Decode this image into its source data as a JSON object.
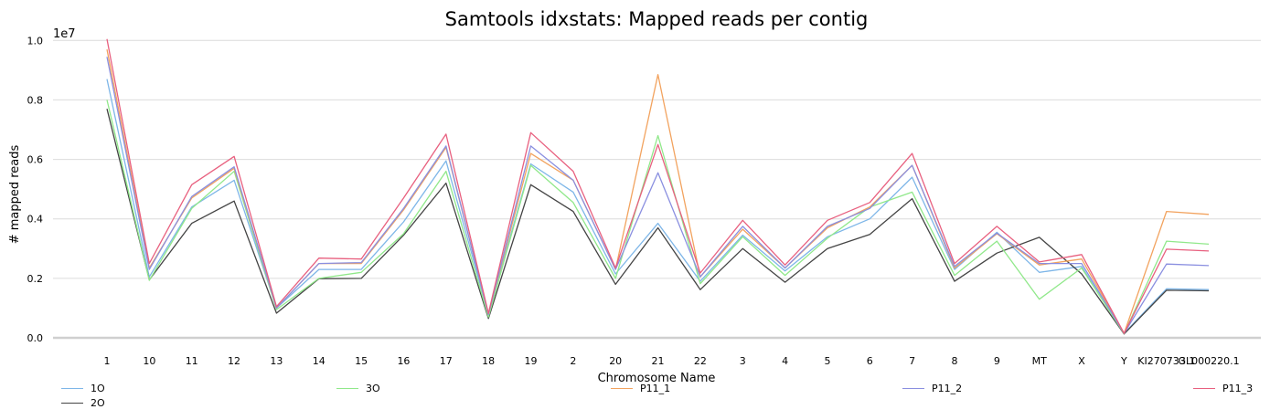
{
  "chart_data": {
    "type": "line",
    "title": "Samtools idxstats: Mapped reads per contig",
    "xlabel": "Chromosome Name",
    "ylabel": "# mapped reads",
    "y_scale_label": "1e7",
    "ylim": [
      0,
      10500000
    ],
    "yticks": [
      "0.0",
      "0.2",
      "0.4",
      "0.6",
      "0.8",
      "1.0"
    ],
    "ytick_values": [
      0,
      2000000,
      4000000,
      6000000,
      8000000,
      10000000
    ],
    "grid": "horizontal",
    "legend_position": "bottom",
    "categories": [
      "1",
      "10",
      "11",
      "12",
      "13",
      "14",
      "15",
      "16",
      "17",
      "18",
      "19",
      "2",
      "20",
      "21",
      "22",
      "3",
      "4",
      "5",
      "6",
      "7",
      "8",
      "9",
      "MT",
      "X",
      "Y",
      "KI270733.1",
      "GL000220.1"
    ],
    "series": [
      {
        "name": "1O",
        "color": "#7EB6E8",
        "values": [
          8700000,
          2050000,
          4400000,
          5300000,
          1000000,
          2300000,
          2300000,
          3900000,
          5950000,
          800000,
          5850000,
          4900000,
          2150000,
          3850000,
          1900000,
          3450000,
          2250000,
          3400000,
          4000000,
          5400000,
          2300000,
          3550000,
          2200000,
          2400000,
          150000,
          1650000,
          1620000
        ]
      },
      {
        "name": "2O",
        "color": "#444444",
        "values": [
          7700000,
          1950000,
          3850000,
          4600000,
          830000,
          1990000,
          2000000,
          3450000,
          5200000,
          650000,
          5150000,
          4250000,
          1800000,
          3700000,
          1620000,
          3000000,
          1870000,
          3000000,
          3480000,
          4680000,
          1900000,
          2850000,
          3380000,
          2150000,
          130000,
          1600000,
          1580000
        ]
      },
      {
        "name": "3O",
        "color": "#90E88A",
        "values": [
          8000000,
          1930000,
          4350000,
          5600000,
          950000,
          2000000,
          2200000,
          3500000,
          5600000,
          700000,
          5800000,
          4550000,
          2000000,
          6800000,
          1820000,
          3400000,
          2100000,
          3350000,
          4400000,
          4900000,
          2100000,
          3250000,
          1300000,
          2350000,
          140000,
          3250000,
          3150000
        ]
      },
      {
        "name": "P11_1",
        "color": "#F2A35F",
        "values": [
          9700000,
          2350000,
          4700000,
          5700000,
          1000000,
          2500000,
          2500000,
          4300000,
          6400000,
          800000,
          6200000,
          5300000,
          2300000,
          8850000,
          2050000,
          3650000,
          2350000,
          3700000,
          4400000,
          5800000,
          2350000,
          3500000,
          2450000,
          2650000,
          150000,
          4250000,
          4150000
        ]
      },
      {
        "name": "P11_2",
        "color": "#8A8FE0",
        "values": [
          9450000,
          2300000,
          4750000,
          5750000,
          1000000,
          2500000,
          2530000,
          4350000,
          6450000,
          780000,
          6450000,
          5300000,
          2300000,
          5550000,
          2050000,
          3750000,
          2350000,
          3750000,
          4350000,
          5800000,
          2400000,
          3520000,
          2500000,
          2500000,
          150000,
          2480000,
          2430000
        ]
      },
      {
        "name": "P11_3",
        "color": "#E8607F",
        "values": [
          10050000,
          2500000,
          5150000,
          6100000,
          1050000,
          2680000,
          2650000,
          4700000,
          6850000,
          820000,
          6900000,
          5600000,
          2350000,
          6500000,
          2180000,
          3950000,
          2450000,
          3950000,
          4550000,
          6200000,
          2500000,
          3750000,
          2550000,
          2800000,
          150000,
          2980000,
          2920000
        ]
      }
    ]
  }
}
